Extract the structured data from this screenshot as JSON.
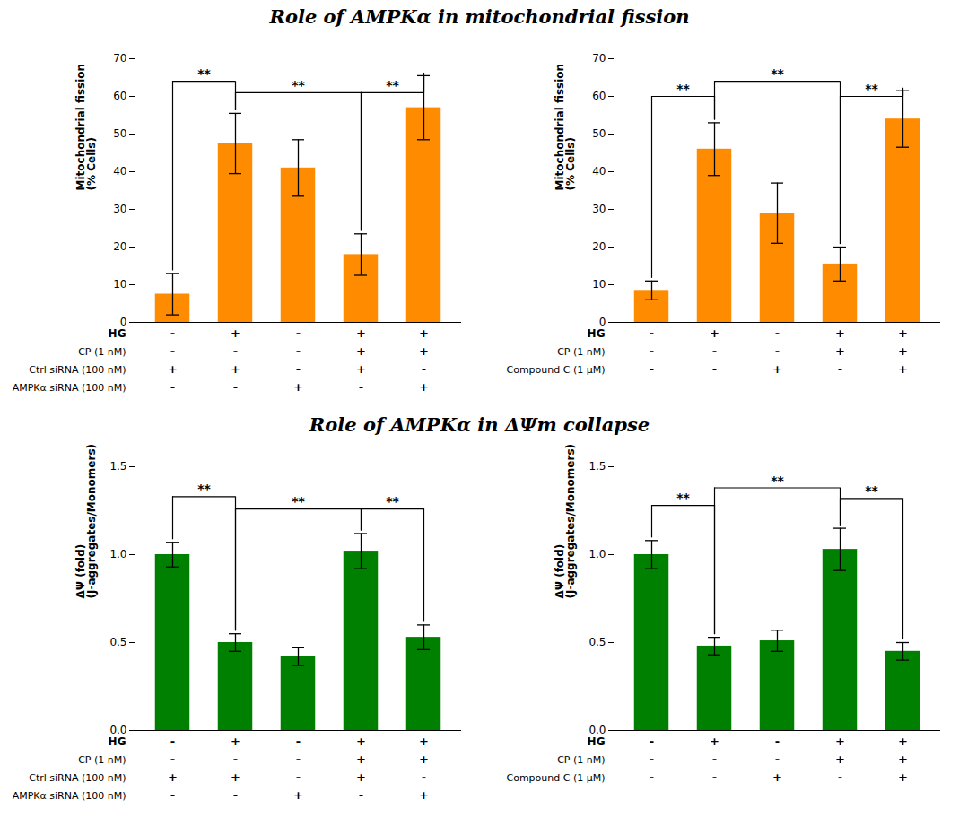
{
  "chart_data": [
    {
      "type": "bar",
      "title": "Role of AMPKα in mitochondrial fission",
      "categories": [
        null,
        null,
        null,
        null,
        null
      ],
      "tick_labels": "y",
      "values": [
        7.5,
        47.5,
        41.0,
        18.0,
        57.0
      ],
      "errors": [
        5.5,
        8.0,
        7.5,
        5.5,
        8.5
      ],
      "ylabel": "Mitochondrial fission\n(% Cells)",
      "ylim": [
        0,
        70
      ],
      "yticks": [
        0,
        10,
        20,
        30,
        40,
        50,
        60,
        70
      ],
      "color": "#FF8C00",
      "row_labels": [
        "HG",
        "CP (1 nM)",
        "Ctrl siRNA (100 nM)",
        "AMPKα siRNA (100 nM)"
      ],
      "signs": [
        [
          "-",
          "+",
          "-",
          "+",
          "+"
        ],
        [
          "-",
          "-",
          "-",
          "+",
          "+"
        ],
        [
          "+",
          "+",
          "-",
          "+",
          "-"
        ],
        [
          "-",
          "-",
          "+",
          "-",
          "+"
        ]
      ],
      "brackets": [
        {
          "from": 0,
          "to": 1,
          "y": 64,
          "label": "**"
        },
        {
          "from": 1,
          "to": 3,
          "y": 61,
          "label": "**"
        },
        {
          "from": 3,
          "to": 4,
          "y": 61,
          "label": "**"
        }
      ]
    },
    {
      "type": "bar",
      "categories": [
        null,
        null,
        null,
        null,
        null
      ],
      "tick_labels": "y",
      "values": [
        8.5,
        46.0,
        29.0,
        15.5,
        54.0
      ],
      "errors": [
        2.5,
        7.0,
        8.0,
        4.5,
        7.5
      ],
      "ylabel": "Mitochondrial fission\n(% Cells)",
      "ylim": [
        0,
        70
      ],
      "yticks": [
        0,
        10,
        20,
        30,
        40,
        50,
        60,
        70
      ],
      "color": "#FF8C00",
      "row_labels": [
        "HG",
        "CP (1 nM)",
        "Compound C (1 μM)"
      ],
      "signs": [
        [
          "-",
          "+",
          "-",
          "+",
          "+"
        ],
        [
          "-",
          "-",
          "-",
          "+",
          "+"
        ],
        [
          "-",
          "-",
          "+",
          "-",
          "+"
        ]
      ],
      "brackets": [
        {
          "from": 0,
          "to": 1,
          "y": 60,
          "label": "**"
        },
        {
          "from": 1,
          "to": 3,
          "y": 64,
          "label": "**"
        },
        {
          "from": 3,
          "to": 4,
          "y": 60,
          "label": "**"
        }
      ]
    },
    {
      "type": "bar",
      "title": "Role of AMPKα in ΔΨm collapse",
      "categories": [
        null,
        null,
        null,
        null,
        null
      ],
      "tick_labels": "y",
      "values": [
        1.0,
        0.5,
        0.42,
        1.02,
        0.53
      ],
      "errors": [
        0.07,
        0.05,
        0.05,
        0.1,
        0.07
      ],
      "ylabel": "ΔΨ (fold)\n(J-aggregates/Monomers)",
      "ylim": [
        0,
        1.5
      ],
      "yticks": [
        {
          "value": 0.0,
          "label": "0.0"
        },
        {
          "value": 0.5,
          "label": "0.5"
        },
        {
          "value": 1.0,
          "label": "1.0"
        },
        {
          "value": 1.5,
          "label": "1.5"
        }
      ],
      "color": "#008000",
      "row_labels": [
        "HG",
        "CP (1 nM)",
        "Ctrl siRNA (100 nM)",
        "AMPKα siRNA (100 nM)"
      ],
      "signs": [
        [
          "-",
          "+",
          "-",
          "+",
          "+"
        ],
        [
          "-",
          "-",
          "-",
          "+",
          "+"
        ],
        [
          "+",
          "+",
          "-",
          "+",
          "-"
        ],
        [
          "-",
          "-",
          "+",
          "-",
          "+"
        ]
      ],
      "brackets": [
        {
          "from": 0,
          "to": 1,
          "y": 1.33,
          "label": "**"
        },
        {
          "from": 1,
          "to": 3,
          "y": 1.26,
          "label": "**"
        },
        {
          "from": 3,
          "to": 4,
          "y": 1.26,
          "label": "**"
        }
      ]
    },
    {
      "type": "bar",
      "categories": [
        null,
        null,
        null,
        null,
        null
      ],
      "tick_labels": "y",
      "values": [
        1.0,
        0.48,
        0.51,
        1.03,
        0.45
      ],
      "errors": [
        0.08,
        0.05,
        0.06,
        0.12,
        0.05
      ],
      "ylabel": "ΔΨ (fold)\n(J-aggregates/Monomers)",
      "ylim": [
        0,
        1.5
      ],
      "yticks": [
        {
          "value": 0.0,
          "label": "0.0"
        },
        {
          "value": 0.5,
          "label": "0.5"
        },
        {
          "value": 1.0,
          "label": "1.0"
        },
        {
          "value": 1.5,
          "label": "1.5"
        }
      ],
      "color": "#008000",
      "row_labels": [
        "HG",
        "CP (1 nM)",
        "Compound C (1 μM)"
      ],
      "signs": [
        [
          "-",
          "+",
          "-",
          "+",
          "+"
        ],
        [
          "-",
          "-",
          "-",
          "+",
          "+"
        ],
        [
          "-",
          "-",
          "+",
          "-",
          "+"
        ]
      ],
      "brackets": [
        {
          "from": 0,
          "to": 1,
          "y": 1.28,
          "label": "**"
        },
        {
          "from": 1,
          "to": 3,
          "y": 1.38,
          "label": "**"
        },
        {
          "from": 3,
          "to": 4,
          "y": 1.32,
          "label": "**"
        }
      ]
    }
  ]
}
